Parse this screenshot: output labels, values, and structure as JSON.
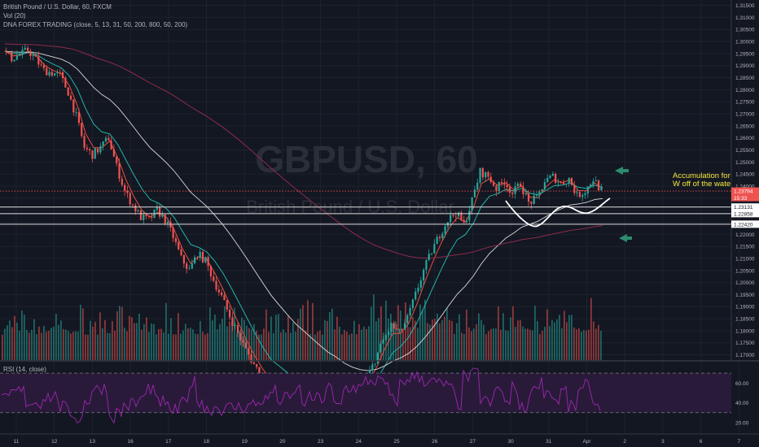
{
  "chart_data": {
    "type": "candlestick",
    "symbol_title": "British Pound / U.S. Dollar, 60, FXCM",
    "legend": [
      "Vol (20)",
      "DNA FOREX TRADING  (close, 5, 13, 31, 50, 200, 800, 50, 200)"
    ],
    "watermark_symbol": "GBPUSD, 60",
    "watermark_name": "British Pound / U.S. Dollar",
    "price_axis": {
      "ticks": [
        "1.31500",
        "1.31000",
        "1.30500",
        "1.30000",
        "1.29500",
        "1.29000",
        "1.28500",
        "1.28000",
        "1.27500",
        "1.27000",
        "1.26500",
        "1.26000",
        "1.25500",
        "1.25000",
        "1.24500",
        "1.24000",
        "1.23500",
        "1.23000",
        "1.22500",
        "1.22000",
        "1.21500",
        "1.21000",
        "1.20500",
        "1.20000",
        "1.19500",
        "1.19000",
        "1.18500",
        "1.18000",
        "1.17500",
        "1.17000"
      ],
      "range": [
        1.1685,
        1.3162
      ]
    },
    "date_axis": {
      "ticks": [
        "11",
        "12",
        "13",
        "16",
        "17",
        "18",
        "19",
        "20",
        "23",
        "24",
        "25",
        "26",
        "27",
        "30",
        "31",
        "Apr",
        "2",
        "3",
        "6",
        "7"
      ]
    },
    "price_close_path": [
      [
        0,
        1.296
      ],
      [
        1,
        1.293
      ],
      [
        2,
        1.2945
      ],
      [
        3,
        1.2965
      ],
      [
        4,
        1.2925
      ],
      [
        5,
        1.288
      ],
      [
        6,
        1.287
      ],
      [
        7,
        1.286
      ],
      [
        8,
        1.279
      ],
      [
        9,
        1.269
      ],
      [
        10,
        1.256
      ],
      [
        11,
        1.253
      ],
      [
        12,
        1.256
      ],
      [
        13,
        1.26
      ],
      [
        14,
        1.248
      ],
      [
        15,
        1.238
      ],
      [
        16,
        1.232
      ],
      [
        17,
        1.227
      ],
      [
        18,
        1.226
      ],
      [
        19,
        1.23
      ],
      [
        20,
        1.226
      ],
      [
        21,
        1.219
      ],
      [
        22,
        1.21
      ],
      [
        23,
        1.205
      ],
      [
        24,
        1.212
      ],
      [
        25,
        1.209
      ],
      [
        26,
        1.201
      ],
      [
        27,
        1.194
      ],
      [
        28,
        1.186
      ],
      [
        29,
        1.179
      ],
      [
        30,
        1.172
      ],
      [
        31,
        1.166
      ],
      [
        32,
        1.161
      ],
      [
        33,
        1.158
      ],
      [
        34,
        1.16
      ],
      [
        35,
        1.157
      ],
      [
        36,
        1.155
      ],
      [
        37,
        1.158
      ],
      [
        38,
        1.154
      ],
      [
        39,
        1.152
      ],
      [
        40,
        1.15
      ],
      [
        41,
        1.154
      ],
      [
        42,
        1.148
      ],
      [
        43,
        1.152
      ],
      [
        44,
        1.156
      ],
      [
        45,
        1.16
      ],
      [
        46,
        1.168
      ],
      [
        47,
        1.176
      ],
      [
        48,
        1.182
      ],
      [
        49,
        1.179
      ],
      [
        50,
        1.185
      ],
      [
        51,
        1.195
      ],
      [
        52,
        1.205
      ],
      [
        53,
        1.213
      ],
      [
        54,
        1.22
      ],
      [
        55,
        1.226
      ],
      [
        56,
        1.229
      ],
      [
        57,
        1.224
      ],
      [
        58,
        1.234
      ],
      [
        59,
        1.246
      ],
      [
        60,
        1.244
      ],
      [
        61,
        1.239
      ],
      [
        62,
        1.242
      ],
      [
        63,
        1.237
      ],
      [
        64,
        1.241
      ],
      [
        65,
        1.233
      ],
      [
        66,
        1.235
      ],
      [
        67,
        1.242
      ],
      [
        68,
        1.244
      ],
      [
        69,
        1.241
      ],
      [
        70,
        1.243
      ],
      [
        71,
        1.236
      ],
      [
        72,
        1.238
      ],
      [
        73,
        1.243
      ],
      [
        74,
        1.238
      ]
    ],
    "horizontal_levels": [
      {
        "label": "1.23131",
        "value": 1.23131
      },
      {
        "label": "1.22858",
        "value": 1.22858
      },
      {
        "label": "1.22420",
        "value": 1.2242
      }
    ],
    "dotted_level": {
      "value": 1.23794
    },
    "current_price": {
      "label": "1.23794",
      "countdown": "15:33"
    },
    "annotation": [
      "Accumulation for",
      "W off of the wate"
    ],
    "rsi": {
      "label": "RSI (14, close)",
      "ticks": [
        "60.00",
        "40.00",
        "20.00"
      ],
      "bands": [
        70,
        30
      ],
      "range": [
        10,
        80
      ]
    },
    "colors": {
      "background": "#131722",
      "grid": "#1e222d",
      "up": "#26a69a",
      "down": "#ef5350",
      "ema_fast": "#e84f3d",
      "ema_teal": "#22b5a8",
      "sma_200": "#d9d9d9",
      "ema_800": "#8b2c48",
      "rsi_line": "#9c27b0",
      "rsi_band": "#2a1a3a",
      "annotation": "#f5e63b",
      "arrow": "#2e8b6f"
    }
  }
}
